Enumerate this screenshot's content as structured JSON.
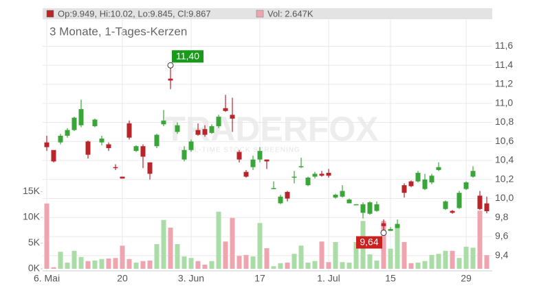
{
  "chart_data": {
    "type": "candlestick",
    "header": {
      "ohlc": "Op:9.949, Hi:10.02, Lo:9.845, Cl:9.867",
      "volume": "Vol: 2.647K"
    },
    "subtitle": "3 Monate, 1-Tages-Kerzen",
    "watermark": {
      "brand": "TRADERFOX",
      "tagline": "REAL-TIME STOCK SCREENING"
    },
    "categories": [
      "6. Mai",
      null,
      null,
      null,
      null,
      null,
      null,
      null,
      null,
      null,
      null,
      "20",
      null,
      null,
      null,
      null,
      null,
      null,
      null,
      null,
      null,
      "3. Jun",
      null,
      null,
      null,
      null,
      null,
      null,
      null,
      null,
      null,
      "17",
      null,
      null,
      null,
      null,
      null,
      null,
      null,
      null,
      null,
      "1. Jul",
      null,
      null,
      null,
      null,
      null,
      null,
      null,
      null,
      "15",
      null,
      null,
      null,
      null,
      null,
      null,
      null,
      null,
      null,
      null,
      "29",
      null,
      null,
      null
    ],
    "open": [
      10.59,
      10.51,
      10.59,
      10.66,
      10.72,
      10.77,
      10.6,
      10.76,
      10.59,
      10.57,
      10.33,
      10.23,
      10.79,
      10.5,
      10.55,
      10.38,
      10.55,
      10.78,
      11.26,
      10.7,
      10.41,
      10.51,
      10.72,
      10.73,
      10.69,
      10.76,
      10.95,
      10.88,
      10.49,
      10.28,
      10.33,
      10.41,
      10.41,
      10.1,
      9.95,
      10.07,
      10.22,
      10.33,
      10.14,
      10.23,
      10.26,
      10.27,
      10.01,
      10.02,
      9.95,
      9.93,
      9.85,
      9.84,
      9.87,
      9.74,
      9.66,
      9.69,
      10.14,
      10.18,
      10.18,
      10.1,
      10.17,
      10.3,
      9.89,
      9.87,
      9.9,
      10.1,
      10.23,
      10.03,
      9.949
    ],
    "high": [
      10.66,
      10.5,
      10.68,
      10.74,
      10.86,
      11.04,
      10.61,
      10.84,
      10.66,
      10.59,
      10.36,
      10.23,
      10.82,
      10.56,
      10.57,
      10.38,
      10.68,
      10.93,
      11.4,
      10.8,
      10.55,
      10.62,
      10.79,
      10.77,
      10.78,
      10.88,
      11.09,
      11.06,
      10.51,
      10.3,
      10.45,
      10.54,
      10.41,
      10.18,
      10.04,
      10.08,
      10.29,
      10.43,
      10.23,
      10.28,
      10.29,
      10.31,
      10.05,
      10.14,
      10.0,
      9.94,
      9.96,
      9.97,
      9.97,
      9.78,
      9.7,
      9.78,
      10.16,
      10.19,
      10.29,
      10.26,
      10.26,
      10.38,
      9.98,
      9.88,
      10.08,
      10.18,
      10.34,
      10.08,
      10.02
    ],
    "low": [
      10.5,
      10.38,
      10.57,
      10.64,
      10.71,
      10.75,
      10.42,
      10.75,
      10.56,
      10.5,
      10.3,
      10.21,
      10.62,
      10.49,
      10.32,
      10.2,
      10.53,
      10.76,
      11.15,
      10.68,
      10.39,
      10.49,
      10.66,
      10.65,
      10.68,
      10.74,
      10.91,
      10.7,
      10.38,
      10.22,
      10.3,
      10.38,
      10.31,
      10.1,
      9.94,
      9.97,
      10.16,
      10.32,
      10.13,
      10.21,
      10.23,
      10.22,
      10.0,
      10.01,
      9.95,
      9.93,
      9.79,
      9.83,
      9.86,
      9.64,
      9.66,
      9.69,
      10.01,
      10.12,
      10.17,
      10.09,
      10.15,
      10.29,
      9.88,
      9.84,
      9.89,
      10.09,
      10.22,
      9.88,
      9.845
    ],
    "close": [
      10.54,
      10.39,
      10.66,
      10.72,
      10.85,
      10.94,
      10.46,
      10.83,
      10.63,
      10.53,
      10.32,
      10.21,
      10.64,
      10.55,
      10.44,
      10.26,
      10.67,
      10.82,
      11.24,
      10.77,
      10.51,
      10.6,
      10.67,
      10.67,
      10.76,
      10.86,
      10.92,
      10.84,
      10.41,
      10.23,
      10.41,
      10.5,
      10.39,
      10.11,
      10.02,
      10.0,
      10.23,
      10.34,
      10.22,
      10.26,
      10.24,
      10.24,
      10.04,
      10.08,
      9.99,
      9.94,
      9.94,
      9.96,
      9.94,
      9.71,
      9.68,
      9.73,
      10.06,
      10.13,
      10.27,
      10.2,
      10.24,
      10.33,
      9.97,
      9.85,
      10.06,
      10.17,
      10.29,
      9.89,
      9.867
    ],
    "volume": [
      12700,
      300,
      3300,
      1200,
      3500,
      2300,
      1500,
      1600,
      1900,
      2000,
      2100,
      4500,
      1900,
      1200,
      1500,
      1600,
      4800,
      9500,
      8000,
      4800,
      2400,
      2100,
      1500,
      800,
      1500,
      11100,
      5300,
      9900,
      2500,
      2700,
      2400,
      8900,
      4000,
      500,
      1100,
      1200,
      2900,
      4500,
      1200,
      1500,
      5300,
      1300,
      5200,
      1300,
      1200,
      5200,
      9300,
      2800,
      1600,
      9300,
      3900,
      8800,
      5200,
      1100,
      1200,
      1500,
      2700,
      2900,
      3500,
      3500,
      2100,
      4300,
      4100,
      11300,
      2647
    ],
    "up_color": "#3aa63a",
    "down_color": "#b8262b",
    "volume_up_color": "#a9dca6",
    "volume_down_color": "#eea5b0",
    "ylim": [
      9.24,
      12.0
    ],
    "yticks": [
      {
        "value": 9.4,
        "label": "9,4"
      },
      {
        "value": 9.6,
        "label": "9,6"
      },
      {
        "value": 9.8,
        "label": "9,8"
      },
      {
        "value": 10.0,
        "label": "10,0"
      },
      {
        "value": 10.2,
        "label": "10,2"
      },
      {
        "value": 10.4,
        "label": "10,4"
      },
      {
        "value": 10.6,
        "label": "10,6"
      },
      {
        "value": 10.8,
        "label": "10,8"
      },
      {
        "value": 11.0,
        "label": "11,0"
      },
      {
        "value": 11.2,
        "label": "11,2"
      },
      {
        "value": 11.4,
        "label": "11,4"
      },
      {
        "value": 11.6,
        "label": "11,6"
      }
    ],
    "y2lim": [
      0,
      50000
    ],
    "y2ticks": [
      {
        "value": 0,
        "label": "0K"
      },
      {
        "value": 5000,
        "label": "5K"
      },
      {
        "value": 10000,
        "label": "10K"
      },
      {
        "value": 15000,
        "label": "15K"
      }
    ],
    "annotations": [
      {
        "text": "11,40",
        "value": 11.4,
        "kind": "high"
      },
      {
        "text": "9,64",
        "value": 9.64,
        "kind": "low"
      }
    ],
    "grid": true
  }
}
